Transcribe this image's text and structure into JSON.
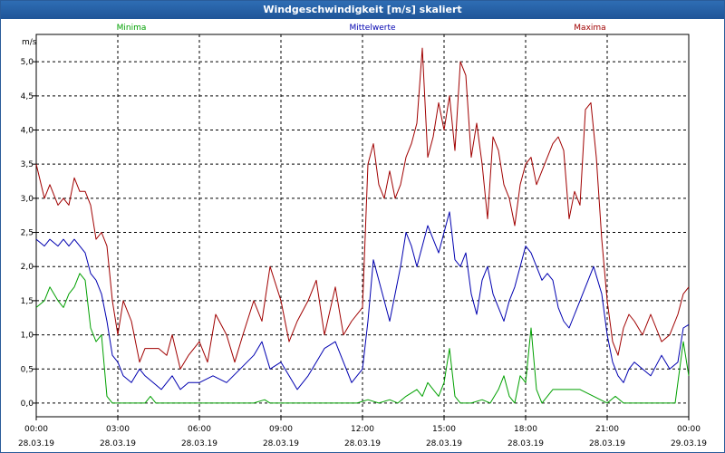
{
  "window": {
    "title": "Windgeschwindigkeit [m/s] skaliert"
  },
  "colors": {
    "min": "#00a000",
    "mean": "#0000b0",
    "max": "#a00000",
    "grid": "#000000"
  },
  "chart_data": {
    "type": "line",
    "title": "Windgeschwindigkeit [m/s] skaliert",
    "ylabel": "m/s",
    "ylim": [
      -0.2,
      5.4
    ],
    "yticks": [
      "0,0",
      "0,5",
      "1,0",
      "1,5",
      "2,0",
      "2,5",
      "3,0",
      "3,5",
      "4,0",
      "4,5",
      "5,0"
    ],
    "yticks_values": [
      0,
      0.5,
      1.0,
      1.5,
      2.0,
      2.5,
      3.0,
      3.5,
      4.0,
      4.5,
      5.0
    ],
    "xlim_hours": [
      0,
      24
    ],
    "xticks": [
      {
        "time": "00:00",
        "date": "28.03.19",
        "hour": 0
      },
      {
        "time": "03:00",
        "date": "28.03.19",
        "hour": 3
      },
      {
        "time": "06:00",
        "date": "28.03.19",
        "hour": 6
      },
      {
        "time": "09:00",
        "date": "28.03.19",
        "hour": 9
      },
      {
        "time": "12:00",
        "date": "28.03.19",
        "hour": 12
      },
      {
        "time": "15:00",
        "date": "28.03.19",
        "hour": 15
      },
      {
        "time": "18:00",
        "date": "28.03.19",
        "hour": 18
      },
      {
        "time": "21:00",
        "date": "28.03.19",
        "hour": 21
      },
      {
        "time": "00:00",
        "date": "29.03.19",
        "hour": 24
      }
    ],
    "grid": true,
    "legend_placement": "top",
    "series": [
      {
        "name": "Minima",
        "color": "#00a000",
        "points": [
          [
            0,
            1.4
          ],
          [
            0.3,
            1.5
          ],
          [
            0.5,
            1.7
          ],
          [
            0.8,
            1.5
          ],
          [
            1.0,
            1.4
          ],
          [
            1.2,
            1.6
          ],
          [
            1.4,
            1.7
          ],
          [
            1.6,
            1.9
          ],
          [
            1.8,
            1.8
          ],
          [
            2.0,
            1.1
          ],
          [
            2.2,
            0.9
          ],
          [
            2.4,
            1.0
          ],
          [
            2.6,
            0.1
          ],
          [
            2.8,
            0.0
          ],
          [
            3.5,
            0.0
          ],
          [
            4.0,
            0.0
          ],
          [
            4.2,
            0.1
          ],
          [
            4.4,
            0.0
          ],
          [
            5.0,
            0.0
          ],
          [
            6.0,
            0.0
          ],
          [
            7.0,
            0.0
          ],
          [
            8.0,
            0.0
          ],
          [
            8.4,
            0.05
          ],
          [
            8.6,
            0.0
          ],
          [
            9.0,
            0.0
          ],
          [
            10.0,
            0.0
          ],
          [
            11.0,
            0.0
          ],
          [
            11.8,
            0.0
          ],
          [
            12.2,
            0.05
          ],
          [
            12.6,
            0.0
          ],
          [
            13.0,
            0.05
          ],
          [
            13.3,
            0.0
          ],
          [
            13.6,
            0.1
          ],
          [
            14.0,
            0.2
          ],
          [
            14.2,
            0.1
          ],
          [
            14.4,
            0.3
          ],
          [
            14.6,
            0.2
          ],
          [
            14.8,
            0.1
          ],
          [
            15.0,
            0.3
          ],
          [
            15.2,
            0.8
          ],
          [
            15.4,
            0.1
          ],
          [
            15.6,
            0.0
          ],
          [
            16.0,
            0.0
          ],
          [
            16.4,
            0.05
          ],
          [
            16.7,
            0.0
          ],
          [
            17.0,
            0.2
          ],
          [
            17.2,
            0.4
          ],
          [
            17.4,
            0.1
          ],
          [
            17.6,
            0.0
          ],
          [
            17.8,
            0.4
          ],
          [
            18.0,
            0.3
          ],
          [
            18.2,
            1.1
          ],
          [
            18.4,
            0.2
          ],
          [
            18.6,
            0.0
          ],
          [
            19.0,
            0.2
          ],
          [
            19.5,
            0.2
          ],
          [
            20.0,
            0.2
          ],
          [
            20.5,
            0.1
          ],
          [
            21.0,
            0.0
          ],
          [
            21.3,
            0.1
          ],
          [
            21.6,
            0.0
          ],
          [
            22.0,
            0.0
          ],
          [
            22.5,
            0.0
          ],
          [
            23.0,
            0.0
          ],
          [
            23.5,
            0.0
          ],
          [
            23.8,
            0.9
          ],
          [
            24.0,
            0.4
          ]
        ]
      },
      {
        "name": "Mittelwerte",
        "color": "#0000b0",
        "points": [
          [
            0,
            2.4
          ],
          [
            0.3,
            2.3
          ],
          [
            0.5,
            2.4
          ],
          [
            0.8,
            2.3
          ],
          [
            1.0,
            2.4
          ],
          [
            1.2,
            2.3
          ],
          [
            1.4,
            2.4
          ],
          [
            1.6,
            2.3
          ],
          [
            1.8,
            2.2
          ],
          [
            2.0,
            1.9
          ],
          [
            2.2,
            1.8
          ],
          [
            2.4,
            1.6
          ],
          [
            2.6,
            1.2
          ],
          [
            2.8,
            0.7
          ],
          [
            3.0,
            0.6
          ],
          [
            3.2,
            0.4
          ],
          [
            3.5,
            0.3
          ],
          [
            3.8,
            0.5
          ],
          [
            4.0,
            0.4
          ],
          [
            4.3,
            0.3
          ],
          [
            4.6,
            0.2
          ],
          [
            5.0,
            0.4
          ],
          [
            5.3,
            0.2
          ],
          [
            5.6,
            0.3
          ],
          [
            6.0,
            0.3
          ],
          [
            6.5,
            0.4
          ],
          [
            7.0,
            0.3
          ],
          [
            7.5,
            0.5
          ],
          [
            8.0,
            0.7
          ],
          [
            8.3,
            0.9
          ],
          [
            8.6,
            0.5
          ],
          [
            9.0,
            0.6
          ],
          [
            9.3,
            0.4
          ],
          [
            9.6,
            0.2
          ],
          [
            10.0,
            0.4
          ],
          [
            10.3,
            0.6
          ],
          [
            10.6,
            0.8
          ],
          [
            11.0,
            0.9
          ],
          [
            11.3,
            0.6
          ],
          [
            11.6,
            0.3
          ],
          [
            12.0,
            0.5
          ],
          [
            12.2,
            1.2
          ],
          [
            12.4,
            2.1
          ],
          [
            12.6,
            1.8
          ],
          [
            12.8,
            1.5
          ],
          [
            13.0,
            1.2
          ],
          [
            13.2,
            1.6
          ],
          [
            13.4,
            2.0
          ],
          [
            13.6,
            2.5
          ],
          [
            13.8,
            2.3
          ],
          [
            14.0,
            2.0
          ],
          [
            14.2,
            2.3
          ],
          [
            14.4,
            2.6
          ],
          [
            14.6,
            2.4
          ],
          [
            14.8,
            2.2
          ],
          [
            15.0,
            2.5
          ],
          [
            15.2,
            2.8
          ],
          [
            15.4,
            2.1
          ],
          [
            15.6,
            2.0
          ],
          [
            15.8,
            2.2
          ],
          [
            16.0,
            1.6
          ],
          [
            16.2,
            1.3
          ],
          [
            16.4,
            1.8
          ],
          [
            16.6,
            2.0
          ],
          [
            16.8,
            1.6
          ],
          [
            17.0,
            1.4
          ],
          [
            17.2,
            1.2
          ],
          [
            17.4,
            1.5
          ],
          [
            17.6,
            1.7
          ],
          [
            17.8,
            2.0
          ],
          [
            18.0,
            2.3
          ],
          [
            18.2,
            2.2
          ],
          [
            18.4,
            2.0
          ],
          [
            18.6,
            1.8
          ],
          [
            18.8,
            1.9
          ],
          [
            19.0,
            1.8
          ],
          [
            19.2,
            1.4
          ],
          [
            19.4,
            1.2
          ],
          [
            19.6,
            1.1
          ],
          [
            19.8,
            1.3
          ],
          [
            20.0,
            1.5
          ],
          [
            20.3,
            1.8
          ],
          [
            20.5,
            2.0
          ],
          [
            20.8,
            1.6
          ],
          [
            21.0,
            1.0
          ],
          [
            21.2,
            0.6
          ],
          [
            21.4,
            0.4
          ],
          [
            21.6,
            0.3
          ],
          [
            21.8,
            0.5
          ],
          [
            22.0,
            0.6
          ],
          [
            22.3,
            0.5
          ],
          [
            22.6,
            0.4
          ],
          [
            23.0,
            0.7
          ],
          [
            23.3,
            0.5
          ],
          [
            23.6,
            0.6
          ],
          [
            23.8,
            1.1
          ],
          [
            24.0,
            1.15
          ]
        ]
      },
      {
        "name": "Maxima",
        "color": "#a00000",
        "points": [
          [
            0,
            3.5
          ],
          [
            0.3,
            3.0
          ],
          [
            0.5,
            3.2
          ],
          [
            0.8,
            2.9
          ],
          [
            1.0,
            3.0
          ],
          [
            1.2,
            2.9
          ],
          [
            1.4,
            3.3
          ],
          [
            1.6,
            3.1
          ],
          [
            1.8,
            3.1
          ],
          [
            2.0,
            2.9
          ],
          [
            2.2,
            2.4
          ],
          [
            2.4,
            2.5
          ],
          [
            2.6,
            2.3
          ],
          [
            2.8,
            1.5
          ],
          [
            3.0,
            1.0
          ],
          [
            3.2,
            1.5
          ],
          [
            3.5,
            1.2
          ],
          [
            3.8,
            0.6
          ],
          [
            4.0,
            0.8
          ],
          [
            4.5,
            0.8
          ],
          [
            4.8,
            0.7
          ],
          [
            5.0,
            1.0
          ],
          [
            5.3,
            0.5
          ],
          [
            5.6,
            0.7
          ],
          [
            6.0,
            0.9
          ],
          [
            6.3,
            0.6
          ],
          [
            6.6,
            1.3
          ],
          [
            7.0,
            1.0
          ],
          [
            7.3,
            0.6
          ],
          [
            7.6,
            1.0
          ],
          [
            8.0,
            1.5
          ],
          [
            8.3,
            1.2
          ],
          [
            8.6,
            2.0
          ],
          [
            9.0,
            1.5
          ],
          [
            9.3,
            0.9
          ],
          [
            9.6,
            1.2
          ],
          [
            10.0,
            1.5
          ],
          [
            10.3,
            1.8
          ],
          [
            10.6,
            1.0
          ],
          [
            11.0,
            1.7
          ],
          [
            11.3,
            1.0
          ],
          [
            11.6,
            1.2
          ],
          [
            12.0,
            1.4
          ],
          [
            12.2,
            3.5
          ],
          [
            12.4,
            3.8
          ],
          [
            12.6,
            3.2
          ],
          [
            12.8,
            3.0
          ],
          [
            13.0,
            3.4
          ],
          [
            13.2,
            3.0
          ],
          [
            13.4,
            3.2
          ],
          [
            13.6,
            3.6
          ],
          [
            13.8,
            3.8
          ],
          [
            14.0,
            4.1
          ],
          [
            14.2,
            5.2
          ],
          [
            14.4,
            3.6
          ],
          [
            14.6,
            3.9
          ],
          [
            14.8,
            4.4
          ],
          [
            15.0,
            4.0
          ],
          [
            15.2,
            4.5
          ],
          [
            15.4,
            3.7
          ],
          [
            15.6,
            5.0
          ],
          [
            15.8,
            4.8
          ],
          [
            16.0,
            3.6
          ],
          [
            16.2,
            4.1
          ],
          [
            16.4,
            3.5
          ],
          [
            16.6,
            2.7
          ],
          [
            16.8,
            3.9
          ],
          [
            17.0,
            3.7
          ],
          [
            17.2,
            3.2
          ],
          [
            17.4,
            3.0
          ],
          [
            17.6,
            2.6
          ],
          [
            17.8,
            3.2
          ],
          [
            18.0,
            3.5
          ],
          [
            18.2,
            3.6
          ],
          [
            18.4,
            3.2
          ],
          [
            18.6,
            3.4
          ],
          [
            18.8,
            3.6
          ],
          [
            19.0,
            3.8
          ],
          [
            19.2,
            3.9
          ],
          [
            19.4,
            3.7
          ],
          [
            19.6,
            2.7
          ],
          [
            19.8,
            3.1
          ],
          [
            20.0,
            2.9
          ],
          [
            20.2,
            4.3
          ],
          [
            20.4,
            4.4
          ],
          [
            20.6,
            3.6
          ],
          [
            20.8,
            2.4
          ],
          [
            21.0,
            1.5
          ],
          [
            21.2,
            0.9
          ],
          [
            21.4,
            0.7
          ],
          [
            21.6,
            1.1
          ],
          [
            21.8,
            1.3
          ],
          [
            22.0,
            1.2
          ],
          [
            22.3,
            1.0
          ],
          [
            22.6,
            1.3
          ],
          [
            22.8,
            1.1
          ],
          [
            23.0,
            0.9
          ],
          [
            23.3,
            1.0
          ],
          [
            23.6,
            1.3
          ],
          [
            23.8,
            1.6
          ],
          [
            24.0,
            1.7
          ]
        ]
      }
    ]
  }
}
